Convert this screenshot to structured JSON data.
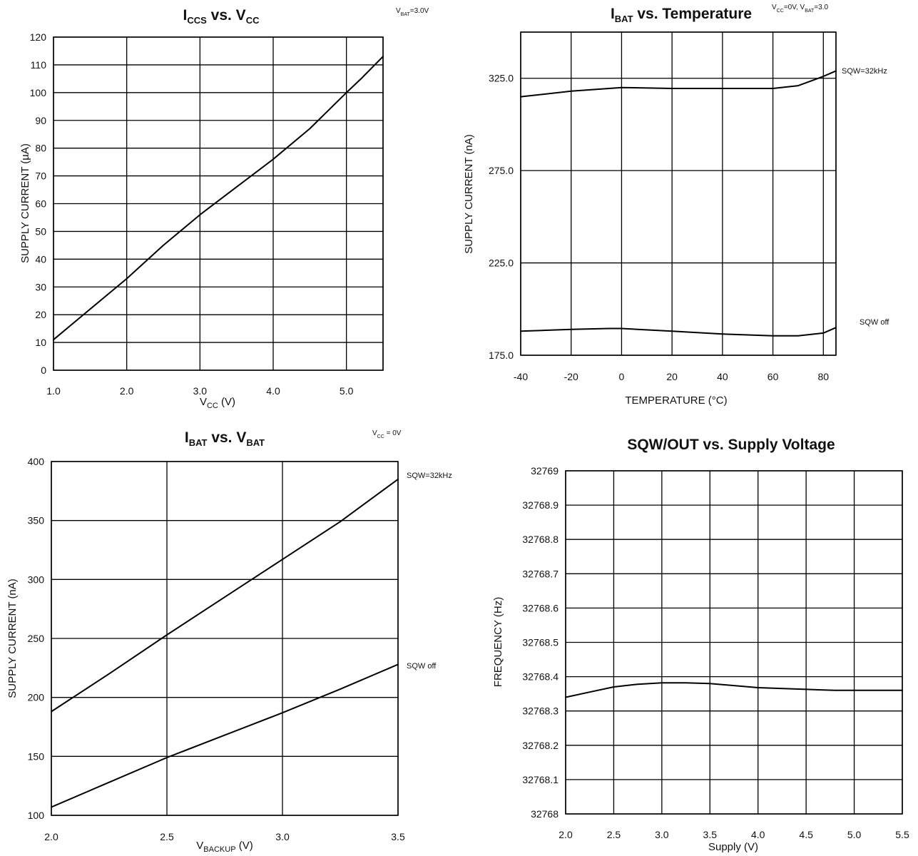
{
  "chart_data": [
    {
      "type": "line",
      "title": {
        "main": "I",
        "sub1": "CCS",
        "mid": " vs. V",
        "sub2": "CC"
      },
      "condition": {
        "pre": "V",
        "sub": "BAT",
        "post": "=3.0V"
      },
      "xlabel": {
        "pre": "V",
        "sub": "CC",
        "post": " (V)"
      },
      "ylabel": "SUPPLY CURRENT (µA)",
      "xlim": [
        1.0,
        5.5
      ],
      "ylim": [
        0,
        120
      ],
      "x_ticks": [
        1.0,
        2.0,
        3.0,
        4.0,
        5.0
      ],
      "x_tick_labels": [
        "1.0",
        "2.0",
        "3.0",
        "4.0",
        "5.0"
      ],
      "y_ticks": [
        0,
        10,
        20,
        30,
        40,
        50,
        60,
        70,
        80,
        90,
        100,
        110,
        120
      ],
      "y_tick_labels": [
        "0",
        "10",
        "20",
        "30",
        "40",
        "50",
        "60",
        "70",
        "80",
        "90",
        "100",
        "110",
        "120"
      ],
      "x_grid": [
        1.0,
        2.0,
        3.0,
        4.0,
        5.0,
        5.5
      ],
      "y_grid": [
        0,
        10,
        20,
        30,
        40,
        50,
        60,
        70,
        80,
        90,
        100,
        110,
        120
      ],
      "series": [
        {
          "label": "",
          "x": [
            1.0,
            1.5,
            2.0,
            2.5,
            3.0,
            3.5,
            4.0,
            4.5,
            5.0,
            5.2,
            5.5
          ],
          "y": [
            11,
            22,
            33,
            45,
            56,
            66,
            76,
            87,
            100,
            105,
            113
          ]
        }
      ]
    },
    {
      "type": "line",
      "title": {
        "main": "I",
        "sub1": "BAT",
        "mid": " vs. Temperature",
        "sub2": ""
      },
      "condition": {
        "pre": "V",
        "sub": "CC",
        "post": "=0V, V",
        "sub2": "BAT",
        "post2": "=3.0"
      },
      "xlabel": {
        "pre": "TEMPERATURE (°C)",
        "sub": "",
        "post": ""
      },
      "ylabel": "SUPPLY CURRENT (nA)",
      "xlim": [
        -40,
        85
      ],
      "ylim": [
        175,
        350
      ],
      "x_ticks": [
        -40,
        -20,
        0,
        20,
        40,
        60,
        80
      ],
      "x_tick_labels": [
        "-40",
        "-20",
        "0",
        "20",
        "40",
        "60",
        "80"
      ],
      "y_ticks": [
        175,
        225,
        275,
        325
      ],
      "y_tick_labels": [
        "175.0",
        "225.0",
        "275.0",
        "325.0"
      ],
      "x_grid": [
        -40,
        -20,
        0,
        20,
        40,
        60,
        80,
        85
      ],
      "y_grid": [
        175,
        225,
        275,
        325,
        350
      ],
      "series": [
        {
          "label": "SQW=32kHz",
          "x": [
            -40,
            -20,
            0,
            20,
            40,
            60,
            70,
            80,
            85
          ],
          "y": [
            315,
            318,
            320,
            319.5,
            319.5,
            319.5,
            321,
            326,
            329
          ]
        },
        {
          "label": "SQW off",
          "x": [
            -40,
            -20,
            -5,
            0,
            20,
            40,
            60,
            70,
            80,
            85
          ],
          "y": [
            188,
            189,
            189.5,
            189.5,
            188,
            186.5,
            185.5,
            185.5,
            187,
            190
          ]
        }
      ]
    },
    {
      "type": "line",
      "title": {
        "main": "I",
        "sub1": "BAT",
        "mid": " vs. V",
        "sub2": "BAT"
      },
      "condition": {
        "pre": "V",
        "sub": "CC",
        "post": " = 0V"
      },
      "xlabel": {
        "pre": "V",
        "sub": "BACKUP",
        "post": " (V)"
      },
      "ylabel": "SUPPLY CURRENT (nA)",
      "xlim": [
        2.0,
        3.5
      ],
      "ylim": [
        100,
        400
      ],
      "x_ticks": [
        2.0,
        2.5,
        3.0,
        3.5
      ],
      "x_tick_labels": [
        "2.0",
        "2.5",
        "3.0",
        "3.5"
      ],
      "y_ticks": [
        100,
        150,
        200,
        250,
        300,
        350,
        400
      ],
      "y_tick_labels": [
        "100",
        "150",
        "200",
        "250",
        "300",
        "350",
        "400"
      ],
      "x_grid": [
        2.0,
        2.5,
        3.0,
        3.5
      ],
      "y_grid": [
        100,
        150,
        200,
        250,
        300,
        350,
        400
      ],
      "series": [
        {
          "label": "SQW=32kHz",
          "x": [
            2.0,
            2.25,
            2.5,
            2.75,
            3.0,
            3.25,
            3.5
          ],
          "y": [
            188,
            220,
            253,
            285,
            317,
            349,
            385
          ]
        },
        {
          "label": "SQW off",
          "x": [
            2.0,
            2.25,
            2.5,
            2.75,
            3.0,
            3.25,
            3.5
          ],
          "y": [
            107,
            128,
            149,
            168,
            187,
            207,
            228
          ]
        }
      ]
    },
    {
      "type": "line",
      "title": {
        "main": "SQW/OUT vs. Supply Voltage",
        "sub1": "",
        "mid": "",
        "sub2": ""
      },
      "condition": {
        "pre": "",
        "sub": "",
        "post": ""
      },
      "xlabel": {
        "pre": "Supply (V)",
        "sub": "",
        "post": ""
      },
      "ylabel": "FREQUENCY (Hz)",
      "xlim": [
        2.0,
        5.5
      ],
      "ylim": [
        32768,
        32769
      ],
      "x_ticks": [
        2.0,
        2.5,
        3.0,
        3.5,
        4.0,
        4.5,
        5.0,
        5.5
      ],
      "x_tick_labels": [
        "2.0",
        "2.5",
        "3.0",
        "3.5",
        "4.0",
        "4.5",
        "5.0",
        "5.5"
      ],
      "y_ticks": [
        32768,
        32768.1,
        32768.2,
        32768.3,
        32768.4,
        32768.5,
        32768.6,
        32768.7,
        32768.8,
        32768.9,
        32769
      ],
      "y_tick_labels": [
        "32768",
        "32768.1",
        "32768.2",
        "32768.3",
        "32768.4",
        "32768.5",
        "32768.6",
        "32768.7",
        "32768.8",
        "32768.9",
        "32769"
      ],
      "x_grid": [
        2.0,
        2.5,
        3.0,
        3.5,
        4.0,
        4.5,
        5.0,
        5.5
      ],
      "y_grid": [
        32768,
        32768.1,
        32768.2,
        32768.3,
        32768.4,
        32768.5,
        32768.6,
        32768.7,
        32768.8,
        32768.9,
        32769
      ],
      "series": [
        {
          "label": "",
          "x": [
            2.0,
            2.25,
            2.5,
            2.75,
            3.0,
            3.25,
            3.5,
            4.0,
            4.5,
            4.8,
            5.5
          ],
          "y": [
            32768.34,
            32768.355,
            32768.37,
            32768.378,
            32768.382,
            32768.382,
            32768.38,
            32768.368,
            32768.363,
            32768.36,
            32768.36
          ]
        }
      ]
    }
  ]
}
